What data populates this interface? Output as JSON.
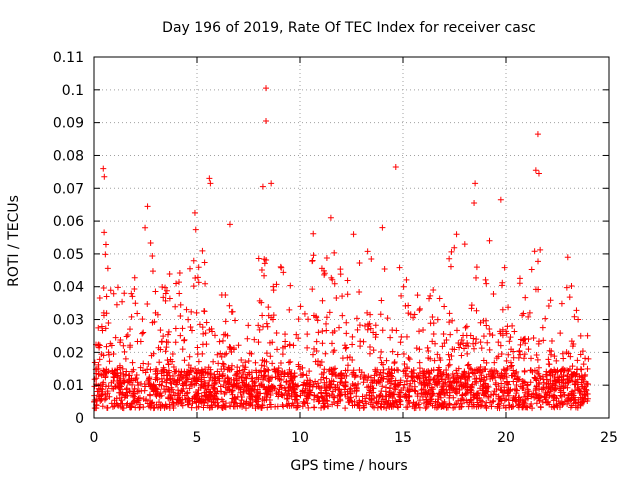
{
  "chart_data": {
    "type": "scatter",
    "title": "Day 196 of 2019, Rate Of TEC Index for receiver casc",
    "xlabel": "GPS time / hours",
    "ylabel": "ROTI / TECUs",
    "xlim": [
      0,
      25
    ],
    "ylim": [
      0,
      0.11
    ],
    "grid": true,
    "marker": "+",
    "color": "#ff0000",
    "x_ticks": [
      0,
      5,
      10,
      15,
      20,
      25
    ],
    "x_tick_labels": [
      "0",
      "5",
      "10",
      "15",
      "20",
      "25"
    ],
    "y_ticks": [
      0,
      0.01,
      0.02,
      0.03,
      0.04,
      0.05,
      0.06,
      0.07,
      0.08,
      0.09,
      0.1,
      0.11
    ],
    "y_tick_labels": [
      "0",
      "0.01",
      "0.02",
      "0.03",
      "0.04",
      "0.05",
      "0.06",
      "0.07",
      "0.08",
      "0.09",
      "0.1",
      "0.11"
    ],
    "data_x_range": [
      0,
      24
    ],
    "notable_points": [
      {
        "x": 8.35,
        "y": 0.1005
      },
      {
        "x": 8.35,
        "y": 0.0905
      },
      {
        "x": 0.45,
        "y": 0.076
      },
      {
        "x": 0.5,
        "y": 0.0735
      },
      {
        "x": 5.6,
        "y": 0.073
      },
      {
        "x": 5.65,
        "y": 0.0715
      },
      {
        "x": 8.2,
        "y": 0.0705
      },
      {
        "x": 8.6,
        "y": 0.0715
      },
      {
        "x": 14.65,
        "y": 0.0765
      },
      {
        "x": 18.5,
        "y": 0.0715
      },
      {
        "x": 18.45,
        "y": 0.0655
      },
      {
        "x": 19.75,
        "y": 0.0665
      },
      {
        "x": 21.55,
        "y": 0.0865
      },
      {
        "x": 21.45,
        "y": 0.0755
      },
      {
        "x": 21.6,
        "y": 0.0745
      },
      {
        "x": 2.6,
        "y": 0.0645
      },
      {
        "x": 4.9,
        "y": 0.0625
      },
      {
        "x": 6.6,
        "y": 0.059
      },
      {
        "x": 11.5,
        "y": 0.061
      },
      {
        "x": 12.6,
        "y": 0.056
      },
      {
        "x": 14.0,
        "y": 0.058
      },
      {
        "x": 17.6,
        "y": 0.056
      },
      {
        "x": 18.0,
        "y": 0.053
      },
      {
        "x": 19.2,
        "y": 0.054
      },
      {
        "x": 23.0,
        "y": 0.049
      },
      {
        "x": 23.5,
        "y": 0.03
      }
    ],
    "activity_envelope": [
      {
        "x": 0.0,
        "y": 0.028
      },
      {
        "x": 0.3,
        "y": 0.048
      },
      {
        "x": 0.5,
        "y": 0.058
      },
      {
        "x": 1.0,
        "y": 0.04
      },
      {
        "x": 1.5,
        "y": 0.04
      },
      {
        "x": 2.0,
        "y": 0.045
      },
      {
        "x": 2.5,
        "y": 0.06
      },
      {
        "x": 3.0,
        "y": 0.052
      },
      {
        "x": 3.5,
        "y": 0.045
      },
      {
        "x": 4.0,
        "y": 0.048
      },
      {
        "x": 4.5,
        "y": 0.05
      },
      {
        "x": 5.0,
        "y": 0.06
      },
      {
        "x": 5.5,
        "y": 0.05
      },
      {
        "x": 6.0,
        "y": 0.04
      },
      {
        "x": 6.5,
        "y": 0.045
      },
      {
        "x": 7.0,
        "y": 0.03
      },
      {
        "x": 7.5,
        "y": 0.03
      },
      {
        "x": 8.0,
        "y": 0.05
      },
      {
        "x": 8.5,
        "y": 0.056
      },
      {
        "x": 9.0,
        "y": 0.05
      },
      {
        "x": 9.5,
        "y": 0.045
      },
      {
        "x": 10.0,
        "y": 0.05
      },
      {
        "x": 10.5,
        "y": 0.058
      },
      {
        "x": 11.0,
        "y": 0.052
      },
      {
        "x": 11.5,
        "y": 0.058
      },
      {
        "x": 12.0,
        "y": 0.05
      },
      {
        "x": 12.5,
        "y": 0.052
      },
      {
        "x": 13.0,
        "y": 0.05
      },
      {
        "x": 13.5,
        "y": 0.054
      },
      {
        "x": 14.0,
        "y": 0.055
      },
      {
        "x": 14.5,
        "y": 0.05
      },
      {
        "x": 15.0,
        "y": 0.045
      },
      {
        "x": 15.5,
        "y": 0.04
      },
      {
        "x": 16.0,
        "y": 0.036
      },
      {
        "x": 16.5,
        "y": 0.04
      },
      {
        "x": 17.0,
        "y": 0.045
      },
      {
        "x": 17.5,
        "y": 0.054
      },
      {
        "x": 18.0,
        "y": 0.05
      },
      {
        "x": 18.5,
        "y": 0.048
      },
      {
        "x": 19.0,
        "y": 0.05
      },
      {
        "x": 19.5,
        "y": 0.054
      },
      {
        "x": 20.0,
        "y": 0.045
      },
      {
        "x": 20.5,
        "y": 0.044
      },
      {
        "x": 21.0,
        "y": 0.042
      },
      {
        "x": 21.5,
        "y": 0.06
      },
      {
        "x": 22.0,
        "y": 0.04
      },
      {
        "x": 22.5,
        "y": 0.03
      },
      {
        "x": 23.0,
        "y": 0.048
      },
      {
        "x": 23.5,
        "y": 0.03
      },
      {
        "x": 24.0,
        "y": 0.026
      }
    ],
    "baseline_range": [
      0.003,
      0.015
    ]
  }
}
